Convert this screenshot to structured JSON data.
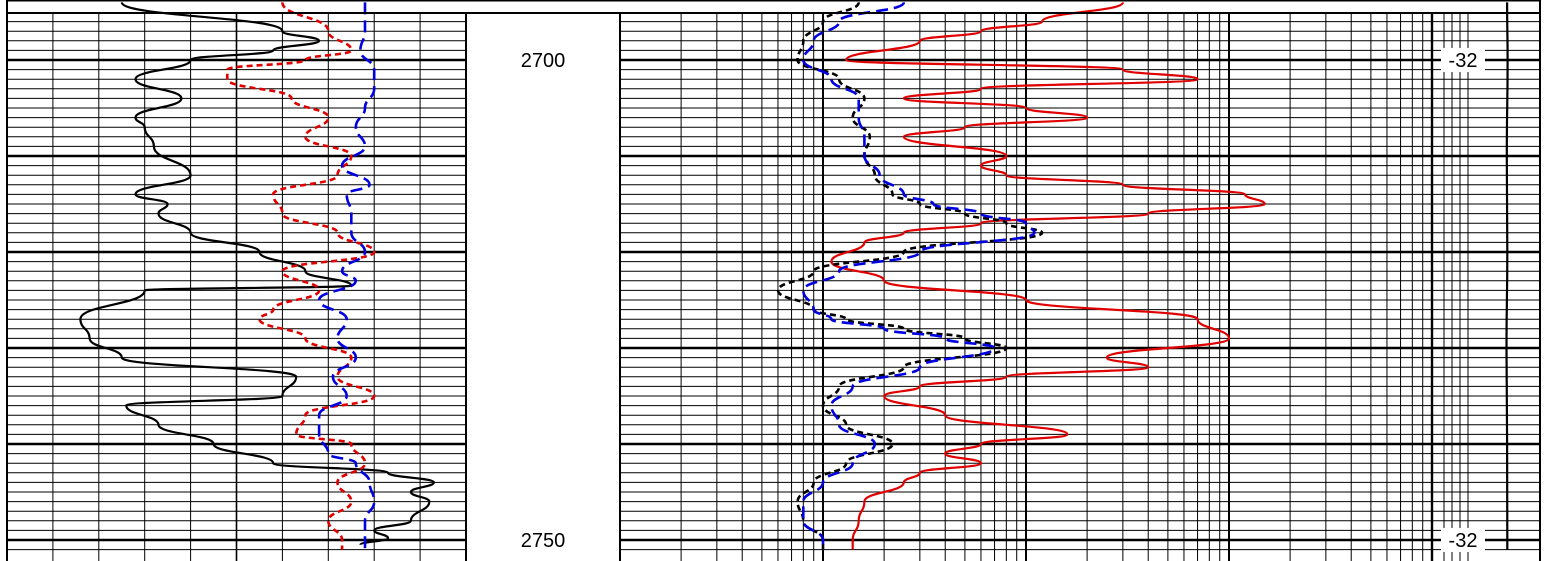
{
  "chart_data": {
    "type": "line",
    "grid": true,
    "depth_labels": [
      "2700",
      "2750"
    ],
    "y_axis": {
      "ticks": [
        2700,
        2750
      ],
      "range": [
        2694,
        2751
      ],
      "inverted": true
    },
    "tracks": [
      {
        "name": "",
        "scale": "linear",
        "xlim": [
          0,
          100
        ],
        "series": [
          {
            "name": "",
            "color": "#000000",
            "style": "solid",
            "depths": [
              2694,
              2697,
              2698,
              2699,
              2700,
              2702,
              2704,
              2706,
              2707,
              2709,
              2712,
              2714,
              2715,
              2716,
              2718,
              2720,
              2722,
              2723.5,
              2724,
              2727,
              2729,
              2731,
              2733,
              2735,
              2736,
              2738,
              2740,
              2742,
              2743,
              2744,
              2745,
              2746,
              2748,
              2749,
              2749.8,
              2750.5
            ],
            "values": [
              25,
              60,
              68,
              58,
              40,
              28,
              38,
              28,
              30,
              32,
              40,
              28,
              35,
              33,
              40,
              55,
              65,
              75,
              30,
              16,
              18,
              25,
              63,
              60,
              26,
              33,
              45,
              58,
              83,
              93,
              88,
              92,
              88,
              80,
              83,
              77
            ]
          },
          {
            "name": "",
            "color": "#e00000",
            "style": "dashed",
            "depths": [
              2694,
              2697,
              2699,
              2700,
              2701,
              2702,
              2704,
              2706,
              2708,
              2710,
              2712,
              2714,
              2716,
              2718,
              2720,
              2722,
              2724,
              2726,
              2727,
              2729,
              2731,
              2733,
              2735,
              2737,
              2739,
              2740,
              2742,
              2744,
              2746,
              2748,
              2750,
              2751
            ],
            "values": [
              60,
              70,
              75,
              65,
              48,
              48,
              62,
              70,
              65,
              75,
              72,
              58,
              60,
              72,
              80,
              60,
              68,
              58,
              55,
              65,
              75,
              72,
              80,
              65,
              63,
              75,
              78,
              72,
              75,
              70,
              73,
              73
            ]
          },
          {
            "name": "",
            "color": "#0000e0",
            "style": "dashed",
            "depths": [
              2694,
              2697,
              2699,
              2701,
              2703,
              2705,
              2707,
              2709,
              2711,
              2713,
              2714,
              2716,
              2718,
              2720,
              2722,
              2723,
              2725,
              2727,
              2729,
              2731,
              2733,
              2735,
              2737,
              2739,
              2741,
              2742,
              2744,
              2746,
              2748,
              2750,
              2751
            ],
            "values": [
              78,
              78,
              77,
              80,
              80,
              78,
              76,
              78,
              73,
              79,
              74,
              75,
              75,
              78,
              73,
              76,
              68,
              74,
              72,
              76,
              71,
              74,
              68,
              68,
              70,
              76,
              79,
              80,
              78,
              78,
              78
            ]
          }
        ]
      },
      {
        "name": "",
        "scale": "log",
        "xlim": [
          0.1,
          1000
        ],
        "series": [
          {
            "name": "",
            "color": "#e00000",
            "style": "solid",
            "depths": [
              2694,
              2696,
              2697,
              2698,
              2700,
              2701,
              2702,
              2703,
              2704,
              2705,
              2706,
              2707,
              2708,
              2710,
              2711,
              2712,
              2713,
              2714,
              2715,
              2716,
              2717,
              2718,
              2719,
              2721,
              2723,
              2725,
              2727,
              2729,
              2731,
              2732,
              2733,
              2734,
              2735,
              2737,
              2739,
              2740,
              2741,
              2742,
              2743,
              2744,
              2746,
              2748,
              2750,
              2751
            ],
            "values": [
              30,
              12,
              6,
              3,
              1.3,
              30,
              70,
              6,
              2.5,
              10,
              20,
              5,
              2.5,
              8,
              6,
              8,
              30,
              120,
              150,
              40,
              6,
              2.5,
              1.6,
              1.1,
              2,
              10,
              70,
              100,
              25,
              40,
              8,
              3,
              2,
              4,
              16,
              6,
              4,
              6,
              3,
              2.5,
              1.6,
              1.5,
              1.4,
              1.4
            ]
          },
          {
            "name": "",
            "color": "#000000",
            "style": "dashed",
            "depths": [
              2694,
              2696,
              2698,
              2700,
              2702,
              2704,
              2706,
              2708,
              2710,
              2712,
              2714,
              2715,
              2716,
              2717,
              2718,
              2720,
              2722,
              2724,
              2726,
              2727,
              2728,
              2729,
              2730,
              2732,
              2734,
              2736,
              2738,
              2740,
              2742,
              2744,
              2746,
              2748,
              2750,
              2751
            ],
            "values": [
              1.5,
              1.0,
              0.8,
              0.75,
              1.2,
              1.6,
              1.4,
              1.7,
              1.6,
              1.8,
              2.2,
              3,
              5,
              8,
              12,
              2.5,
              0.9,
              0.6,
              0.9,
              1.3,
              2.5,
              5,
              8,
              2.5,
              1.2,
              1.0,
              1.3,
              2.2,
              1.3,
              0.9,
              0.75,
              0.8,
              1.0,
              1.0
            ]
          },
          {
            "name": "",
            "color": "#0000e0",
            "style": "dashed",
            "depths": [
              2694,
              2696,
              2698,
              2700,
              2702,
              2704,
              2706,
              2708,
              2710,
              2712,
              2714,
              2715,
              2716,
              2717,
              2718,
              2720,
              2722,
              2724,
              2726,
              2727,
              2728,
              2729,
              2730,
              2732,
              2734,
              2736,
              2738,
              2740,
              2742,
              2744,
              2746,
              2748,
              2750,
              2751
            ],
            "values": [
              2.5,
              1.2,
              0.9,
              0.8,
              1.1,
              1.5,
              1.5,
              1.6,
              1.6,
              1.9,
              2.5,
              3.5,
              6,
              10,
              11,
              3,
              1.2,
              0.8,
              0.9,
              1.1,
              2,
              4,
              7,
              3,
              1.4,
              1.1,
              1.2,
              1.8,
              1.4,
              1.0,
              0.8,
              0.8,
              1.0,
              1.0
            ]
          }
        ]
      },
      {
        "name": "",
        "scale": "linear",
        "xlim": [
          -60,
          -20
        ],
        "annotations": [
          "-32",
          "-32"
        ],
        "series": [
          {
            "name": "",
            "color": "#000000",
            "style": "solid",
            "depths": [
              2694,
              2700,
              2710,
              2720,
              2730,
              2740,
              2750,
              2751
            ],
            "values": [
              -32.2,
              -32.0,
              -32.3,
              -32.1,
              -32.4,
              -32.2,
              -32.1,
              -32.1
            ]
          }
        ]
      }
    ]
  }
}
